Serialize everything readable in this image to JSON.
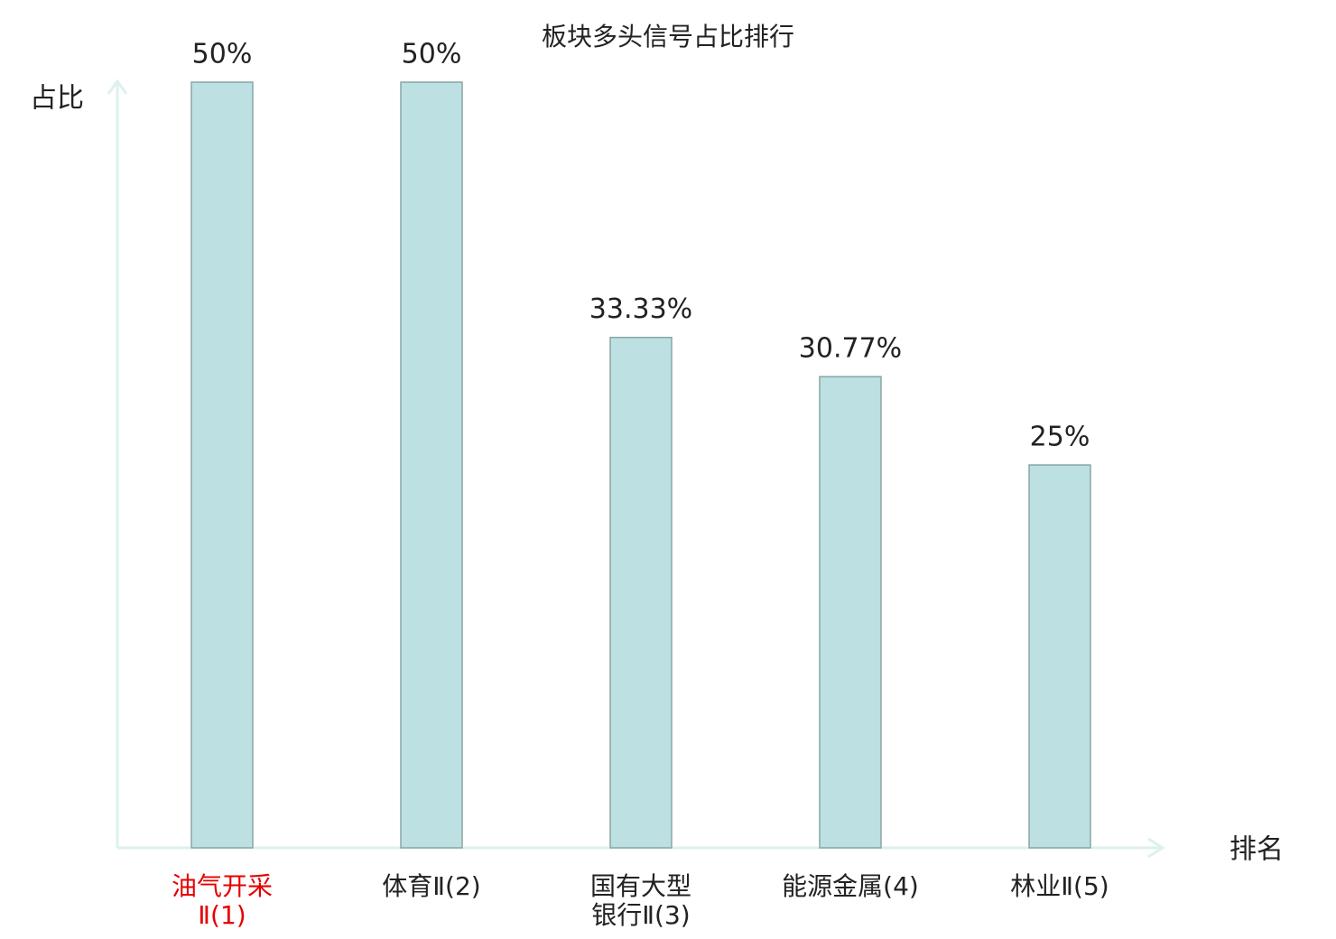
{
  "chart_data": {
    "type": "bar",
    "title": "板块多头信号占比排行",
    "y_label": "占比",
    "x_label": "排名",
    "categories": [
      "油气开采\nⅡ(1)",
      "体育Ⅱ(2)",
      "国有大型\n银行Ⅱ(3)",
      "能源金属(4)",
      "林业Ⅱ(5)"
    ],
    "values": [
      50,
      50,
      33.33,
      30.77,
      25
    ],
    "value_labels": [
      "50%",
      "50%",
      "33.33%",
      "30.77%",
      "25%"
    ],
    "color": "#bde0e2",
    "highlight_index": 0,
    "highlight_color": "#e60000",
    "ylim": [
      0,
      50
    ]
  }
}
